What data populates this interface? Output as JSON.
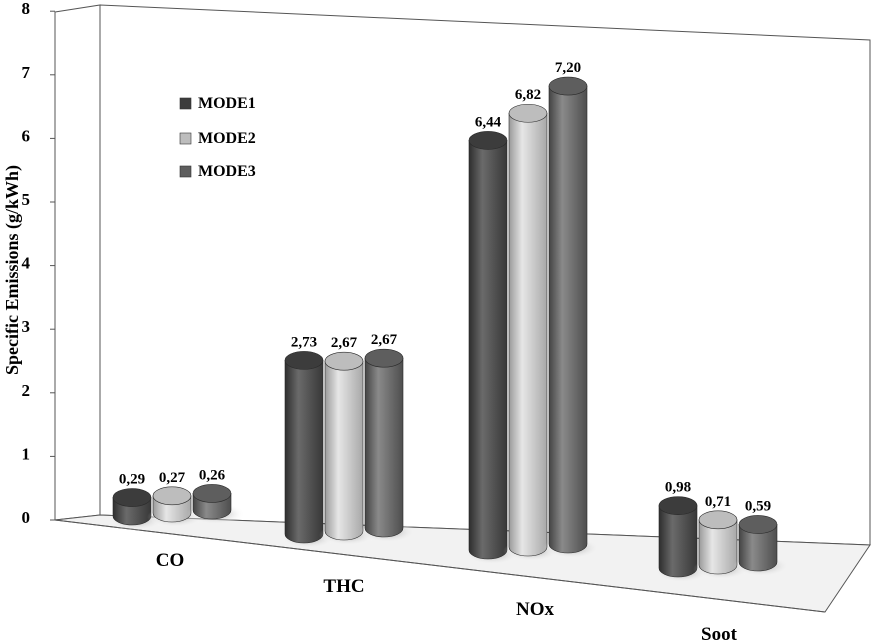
{
  "chart_data": {
    "type": "bar",
    "ylabel": "Specific Emissions   (g/kWh)",
    "ylim": [
      0,
      8
    ],
    "yticks": [
      "0",
      "1",
      "2",
      "3",
      "4",
      "5",
      "6",
      "7",
      "8"
    ],
    "categories": [
      "CO",
      "THC",
      "NOx",
      "Soot"
    ],
    "series": [
      {
        "name": "MODE1",
        "values": [
          0.29,
          2.73,
          6.44,
          0.98
        ],
        "labels": [
          "0,29",
          "2,73",
          "6,44",
          "0,98"
        ],
        "color": "#5a5a5a"
      },
      {
        "name": "MODE2",
        "values": [
          0.27,
          2.67,
          6.82,
          0.71
        ],
        "labels": [
          "0,27",
          "2,67",
          "6,82",
          "0,71"
        ],
        "color": "#c8c8c8"
      },
      {
        "name": "MODE3",
        "values": [
          0.26,
          2.67,
          7.2,
          0.59
        ],
        "labels": [
          "0,26",
          "2,67",
          "7,20",
          "0,59"
        ],
        "color": "#7a7a7a"
      }
    ],
    "legend": {
      "position": "top-left"
    },
    "grid": false,
    "style": "3d-cylinder"
  }
}
